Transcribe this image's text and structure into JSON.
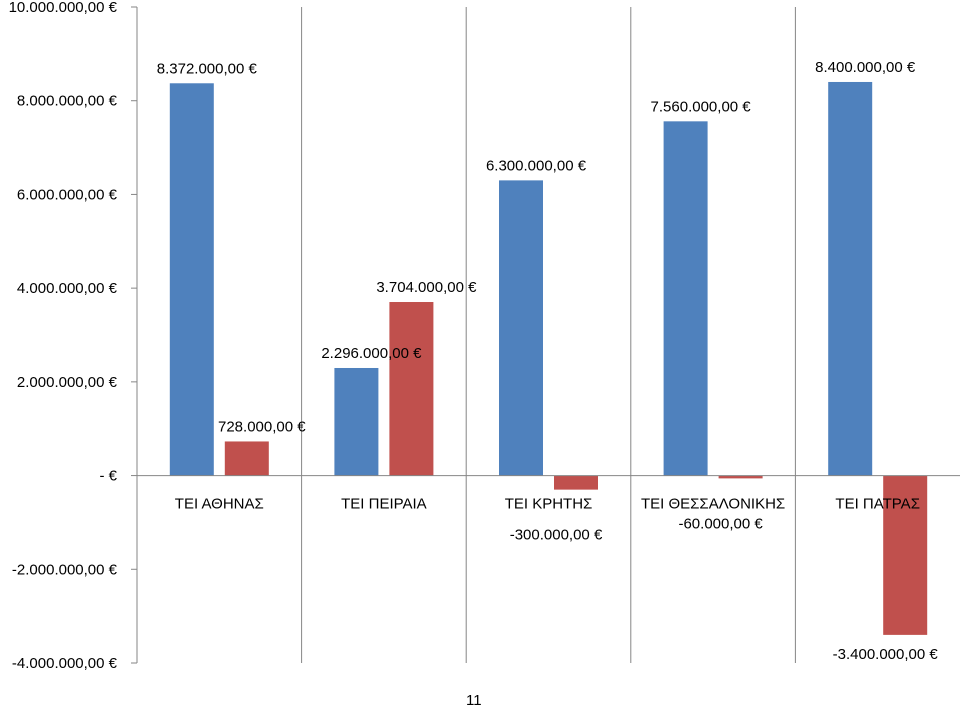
{
  "chart_data": {
    "type": "bar",
    "categories": [
      "ΤΕΙ ΑΘΗΝΑΣ",
      "ΤΕΙ ΠΕΙΡΑΙΑ",
      "ΤΕΙ ΚΡΗΤΗΣ",
      "ΤΕΙ ΘΕΣΣΑΛΟΝΙΚΗΣ",
      "ΤΕΙ ΠΑΤΡΑΣ"
    ],
    "series": [
      {
        "color": "#4F81BD",
        "values": [
          8372000,
          2296000,
          6300000,
          7560000,
          8400000
        ],
        "labels": [
          "8.372.000,00 €",
          "2.296.000,00 €",
          "6.300.000,00 €",
          "7.560.000,00 €",
          "8.400.000,00 €"
        ]
      },
      {
        "color": "#C0504D",
        "values": [
          728000,
          3704000,
          -300000,
          -60000,
          -3400000
        ],
        "labels": [
          "728.000,00 €",
          "3.704.000,00 €",
          "-300.000,00 €",
          "-60.000,00 €",
          "-3.400.000,00 €"
        ]
      }
    ],
    "ylim": [
      -4000000,
      10000000
    ],
    "yticks": [
      10000000,
      8000000,
      6000000,
      4000000,
      2000000,
      0,
      -2000000,
      -4000000
    ],
    "ytick_labels": [
      "10.000.000,00 €",
      "8.000.000,00 €",
      "6.000.000,00 €",
      "4.000.000,00 €",
      "2.000.000,00 €",
      "-   €",
      "-2.000.000,00 €",
      "-4.000.000,00 €"
    ],
    "grid": "vertical",
    "legend": "none"
  },
  "page_number": "11"
}
